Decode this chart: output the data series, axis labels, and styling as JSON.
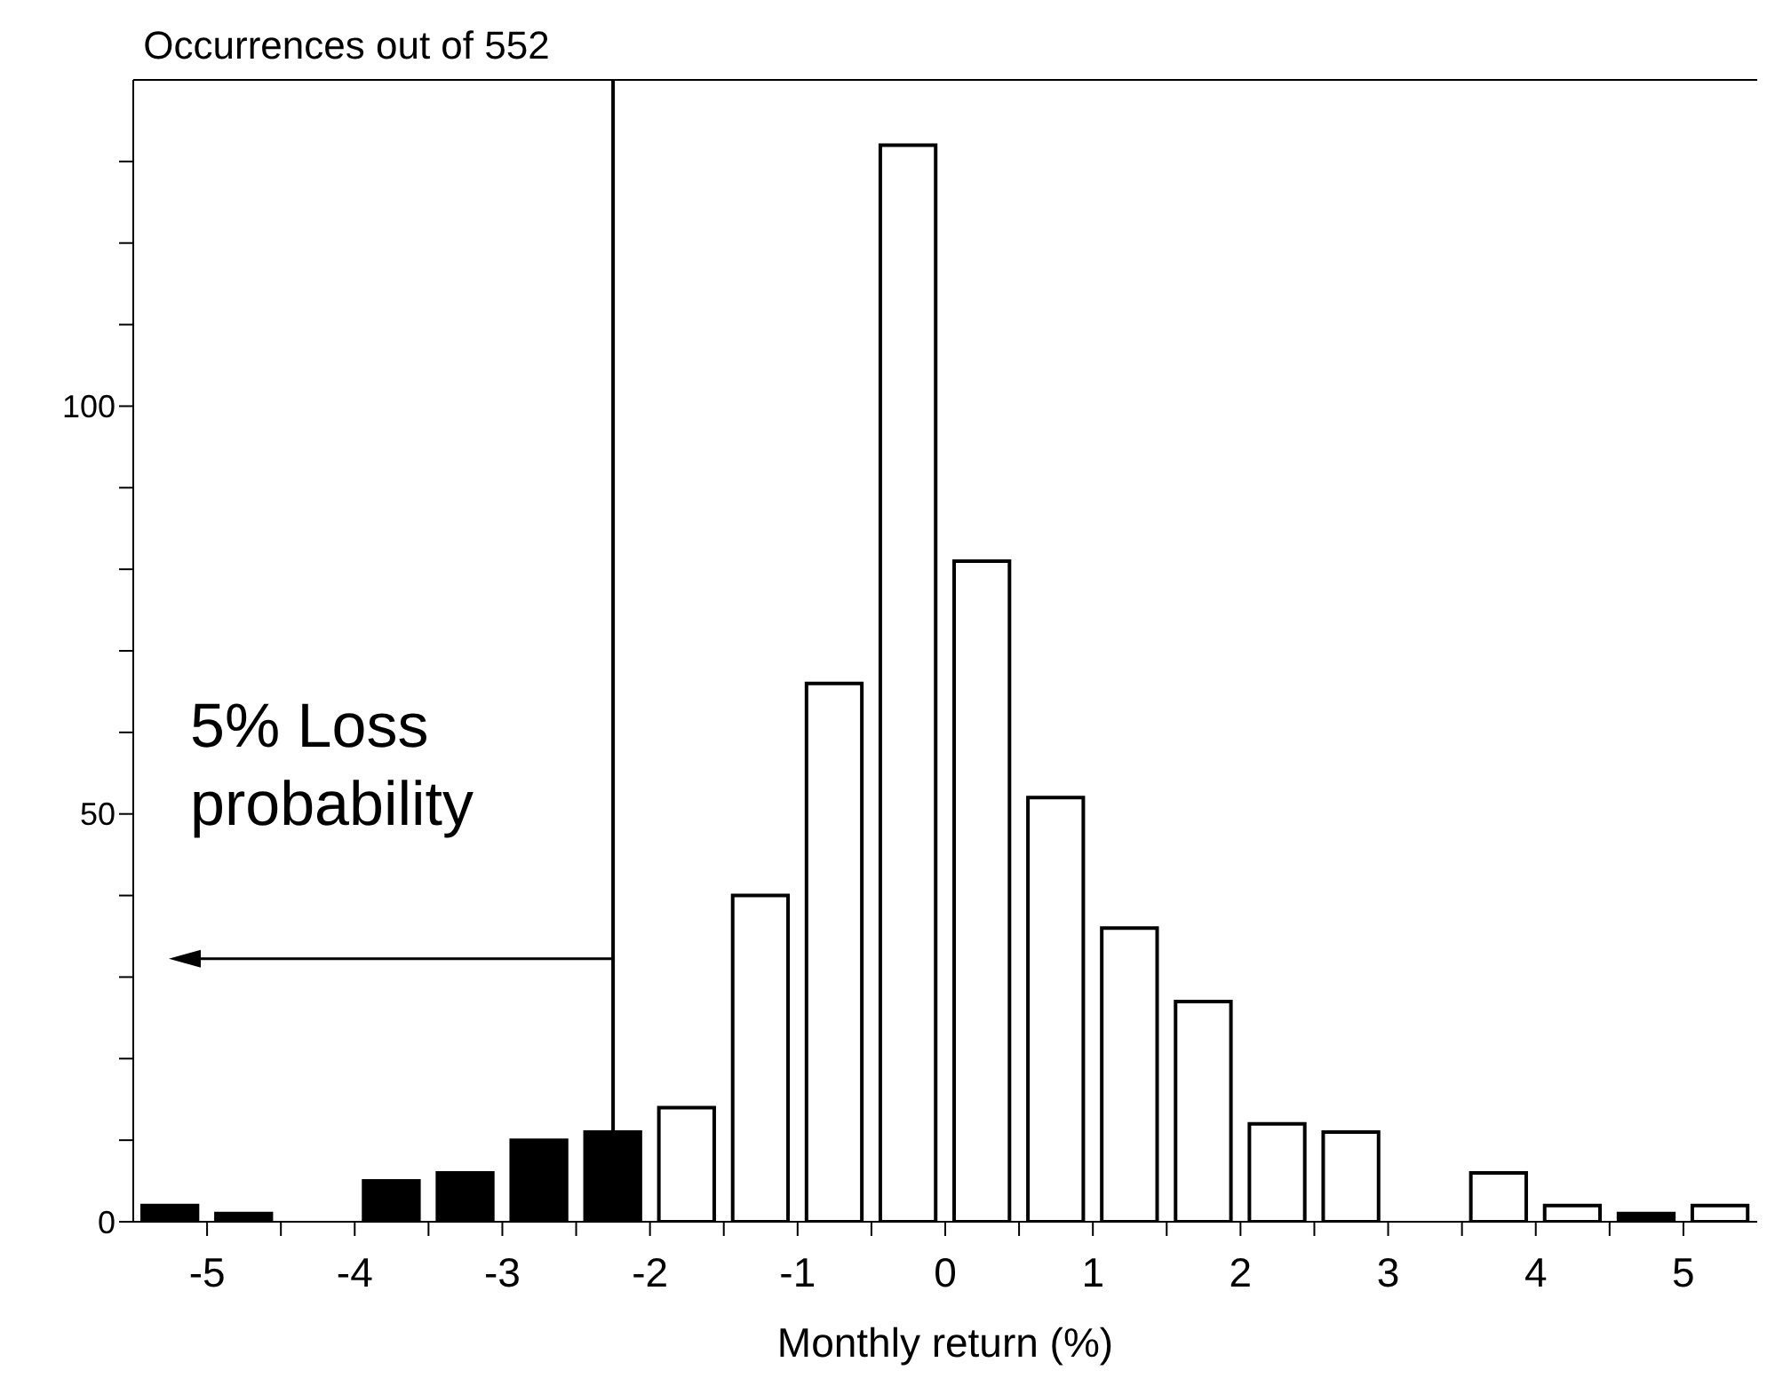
{
  "chart_data": {
    "type": "histogram",
    "ylabel": "Occurrences out of 552",
    "xlabel": "Monthly return (%)",
    "bins": [
      -5.5,
      -5,
      -4.5,
      -4,
      -3.5,
      -3,
      -2.5,
      -2,
      -1.5,
      -1,
      -0.5,
      0,
      0.5,
      1,
      1.5,
      2,
      2.5,
      3,
      3.5,
      4,
      4.5,
      5,
      5.5
    ],
    "values": [
      2,
      1,
      0,
      5,
      6,
      10,
      11,
      14,
      40,
      66,
      132,
      81,
      52,
      36,
      27,
      12,
      11,
      0,
      6,
      2,
      1,
      2
    ],
    "colors": [
      "#000000",
      "#000000",
      "#000000",
      "#000000",
      "#000000",
      "#000000",
      "#000000",
      "#ffffff",
      "#ffffff",
      "#ffffff",
      "#ffffff",
      "#ffffff",
      "#ffffff",
      "#ffffff",
      "#ffffff",
      "#ffffff",
      "#ffffff",
      "#ffffff",
      "#ffffff",
      "#ffffff",
      "#000000",
      "#ffffff"
    ],
    "xlim": [
      -5.5,
      5.5
    ],
    "xticks": [
      -5,
      {
        "value": -4.5,
        "label": null
      },
      -4,
      {
        "value": -3.5,
        "label": null
      },
      -3,
      {
        "value": -2.5,
        "label": null
      },
      -2,
      {
        "value": -1.5,
        "label": null
      },
      -1,
      {
        "value": -0.5,
        "label": null
      },
      0,
      {
        "value": 0.5,
        "label": null
      },
      1,
      {
        "value": 1.5,
        "label": null
      },
      2,
      {
        "value": 2.5,
        "label": null
      },
      3,
      {
        "value": 3.5,
        "label": null
      },
      4,
      {
        "value": 4.5,
        "label": null
      },
      5
    ],
    "ylim": [
      0,
      140
    ],
    "yticks": [
      0,
      {
        "value": 10,
        "label": null
      },
      {
        "value": 20,
        "label": null
      },
      {
        "value": 30,
        "label": null
      },
      {
        "value": 40,
        "label": null
      },
      50,
      {
        "value": 60,
        "label": null
      },
      {
        "value": 70,
        "label": null
      },
      {
        "value": 80,
        "label": null
      },
      {
        "value": 90,
        "label": null
      },
      100,
      {
        "value": 110,
        "label": null
      },
      {
        "value": 120,
        "label": null
      },
      {
        "value": 130,
        "label": null
      }
    ],
    "ref_lines": [
      {
        "axis": "x",
        "value": -2.25,
        "color": "#000000"
      }
    ],
    "annotations": [
      "5% Loss probability"
    ],
    "grid": false,
    "legend": false
  }
}
